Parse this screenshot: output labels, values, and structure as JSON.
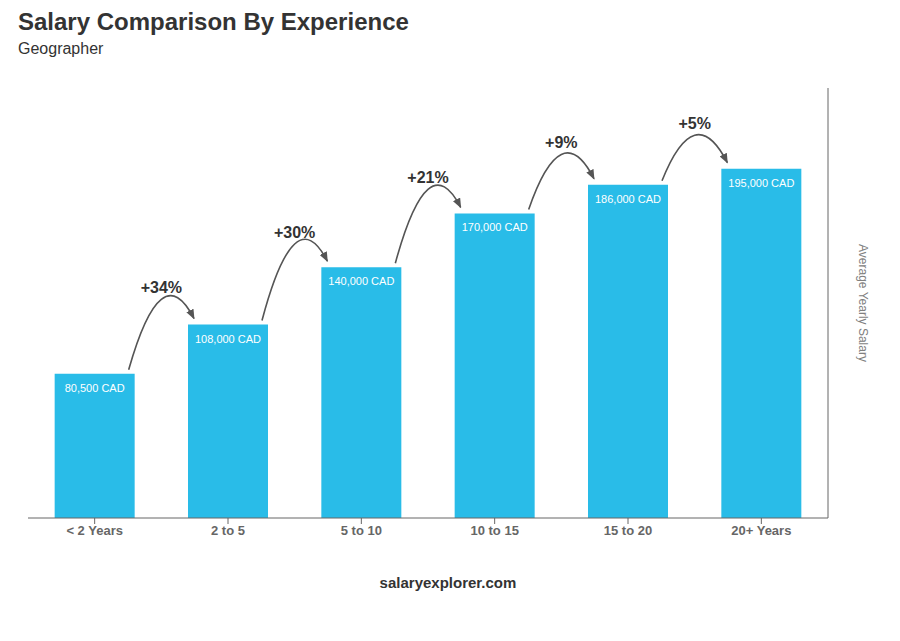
{
  "chart_data": {
    "type": "bar",
    "title": "Salary Comparison By Experience",
    "subtitle": "Geographer",
    "ylabel": "Average Yearly Salary",
    "footer": "salaryexplorer.com",
    "categories": [
      "< 2 Years",
      "2 to 5",
      "5 to 10",
      "10 to 15",
      "15 to 20",
      "20+ Years"
    ],
    "values": [
      80500,
      108000,
      140000,
      170000,
      186000,
      195000
    ],
    "value_labels": [
      "80,500 CAD",
      "108,000 CAD",
      "140,000 CAD",
      "170,000 CAD",
      "186,000 CAD",
      "195,000 CAD"
    ],
    "data_labels": true,
    "annotations": [
      "+34%",
      "+30%",
      "+21%",
      "+9%",
      "+5%"
    ],
    "color": "#29bce8",
    "ylim": [
      0,
      240000
    ],
    "tick_labels": "x",
    "grid": false
  }
}
